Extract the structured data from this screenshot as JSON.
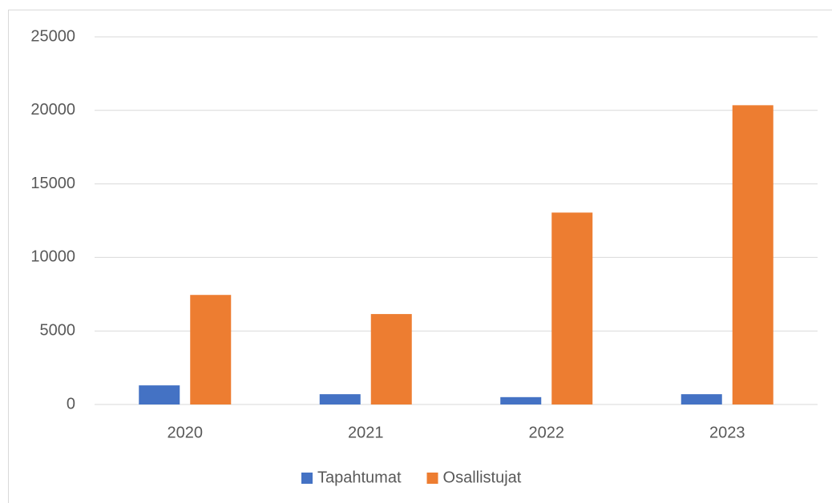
{
  "chart_data": {
    "type": "bar",
    "categories": [
      "2020",
      "2021",
      "2022",
      "2023"
    ],
    "series": [
      {
        "name": "Tapahtumat",
        "color": "#4472c4",
        "values": [
          1300,
          700,
          500,
          700
        ]
      },
      {
        "name": "Osallistujat",
        "color": "#ed7d31",
        "values": [
          7450,
          6150,
          13050,
          20350
        ]
      }
    ],
    "ylim": [
      0,
      25000
    ],
    "yticks": [
      0,
      5000,
      10000,
      15000,
      20000,
      25000
    ],
    "grid": true,
    "legend": "bottom"
  }
}
